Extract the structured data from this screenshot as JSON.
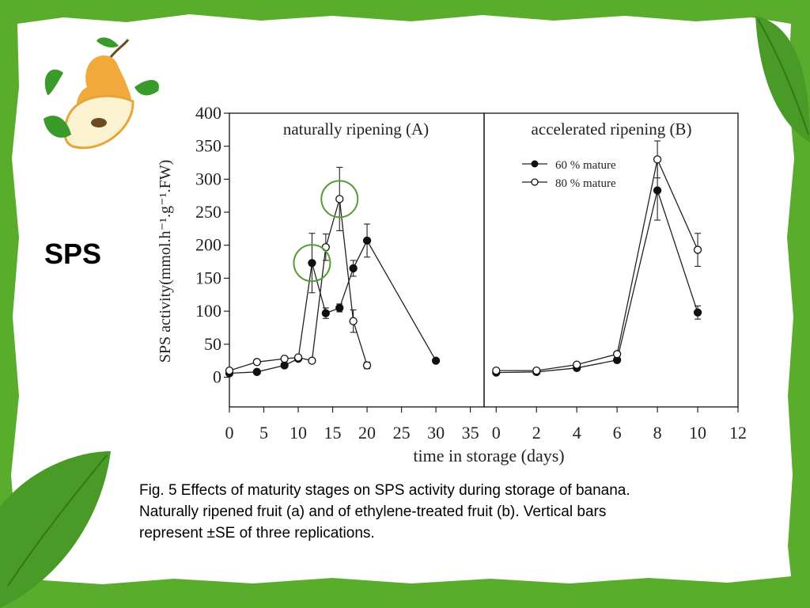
{
  "slide": {
    "title": "SPS",
    "caption_lines": [
      "Fig. 5 Effects of maturity stages on SPS activity during storage of banana.",
      "Naturally ripened fruit (a) and of ethylene-treated fruit (b). Vertical bars",
      "represent ±SE of three replications."
    ]
  },
  "colors": {
    "frame_green": "#5aac2c",
    "leaf_green": "#3f8f22",
    "pear": "#f2a93b",
    "highlight_circle": "#5a9a3a"
  },
  "icons": [
    "pear-icon",
    "leaf-icon"
  ],
  "chart_data": [
    {
      "type": "line",
      "title": "naturally ripening (A)",
      "xlabel": "time in storage (days)",
      "ylabel": "SPS activity(mmol.h⁻¹.g⁻¹.FW)",
      "xlim": [
        0,
        37
      ],
      "ylim": [
        -45,
        400
      ],
      "xticks": [
        0,
        5,
        10,
        15,
        20,
        25,
        30,
        35
      ],
      "yticks": [
        0,
        50,
        100,
        150,
        200,
        250,
        300,
        350,
        400
      ],
      "series": [
        {
          "name": "60 % mature",
          "marker": "filled",
          "x": [
            0,
            4,
            8,
            10,
            12,
            14,
            16,
            18,
            20,
            30
          ],
          "y": [
            6,
            8,
            18,
            28,
            173,
            97,
            105,
            165,
            207,
            25
          ],
          "err": [
            0,
            0,
            4,
            0,
            45,
            8,
            6,
            12,
            25,
            0
          ]
        },
        {
          "name": "80 % mature",
          "marker": "open",
          "x": [
            0,
            4,
            8,
            10,
            12,
            14,
            16,
            18,
            20
          ],
          "y": [
            10,
            23,
            28,
            30,
            25,
            197,
            270,
            85,
            18
          ],
          "err": [
            0,
            0,
            0,
            0,
            0,
            20,
            48,
            17,
            5
          ]
        }
      ],
      "highlighted": [
        {
          "x": 12,
          "y": 173
        },
        {
          "x": 16,
          "y": 270
        }
      ]
    },
    {
      "type": "line",
      "title": "accelerated  ripening (B)",
      "xlabel": "",
      "ylabel": "",
      "xlim": [
        -0.6,
        12
      ],
      "ylim": [
        -45,
        400
      ],
      "xticks": [
        0,
        2,
        4,
        6,
        8,
        10,
        12
      ],
      "legend_position": "top-left",
      "series": [
        {
          "name": "60 % mature",
          "marker": "filled",
          "x": [
            0,
            2,
            4,
            6,
            8,
            10
          ],
          "y": [
            7,
            8,
            14,
            26,
            283,
            98
          ],
          "err": [
            0,
            0,
            0,
            0,
            45,
            10
          ]
        },
        {
          "name": "80 % mature",
          "marker": "open",
          "x": [
            0,
            2,
            4,
            6,
            8,
            10
          ],
          "y": [
            10,
            10,
            19,
            35,
            330,
            193
          ],
          "err": [
            0,
            0,
            0,
            0,
            28,
            25
          ]
        }
      ]
    }
  ]
}
